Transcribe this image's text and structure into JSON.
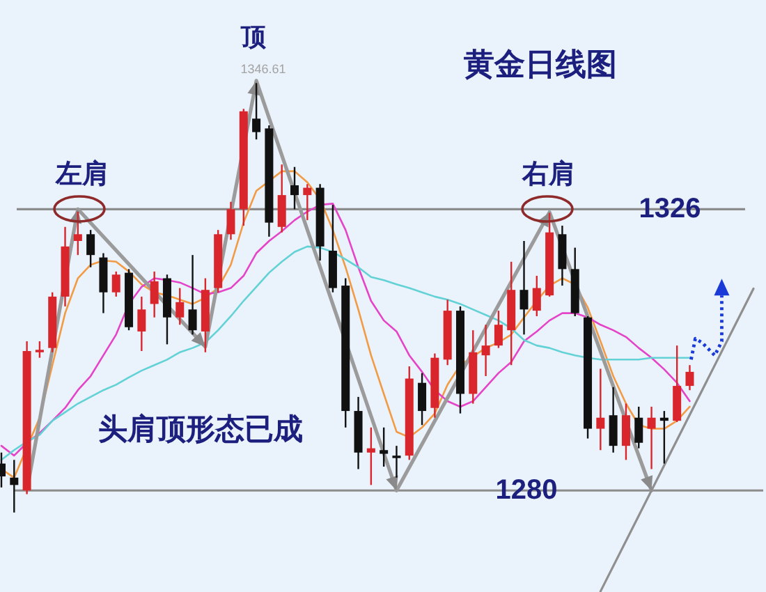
{
  "chart_data": {
    "type": "candlestick",
    "title": "黄金日线图",
    "categories": [
      null,
      null,
      null,
      null,
      null,
      null,
      null,
      null,
      null,
      null,
      null,
      null,
      null,
      null,
      null,
      null,
      null,
      null,
      null,
      null,
      null,
      null,
      null,
      null,
      null,
      null,
      null,
      null,
      null,
      null,
      null,
      null,
      null,
      null,
      null,
      null,
      null,
      null,
      null,
      null,
      null,
      null,
      null,
      null,
      null,
      null,
      null,
      null,
      null,
      null,
      null,
      null,
      null,
      null,
      null,
      null,
      null,
      null,
      null,
      null
    ],
    "ylim": [
      1263.4,
      1360.2
    ],
    "ohlc": [
      [
        1284.4,
        1286.2,
        1280.5,
        1282.3
      ],
      [
        1282.1,
        1285.0,
        1276.4,
        1280.9
      ],
      [
        1280.0,
        1304.4,
        1279.4,
        1302.8
      ],
      [
        1302.6,
        1304.4,
        1301.7,
        1303.0
      ],
      [
        1303.3,
        1312.4,
        1302.6,
        1311.7
      ],
      [
        1311.7,
        1323.1,
        1310.1,
        1319.9
      ],
      [
        1320.8,
        1325.6,
        1318.5,
        1321.9
      ],
      [
        1321.9,
        1322.6,
        1316.5,
        1318.5
      ],
      [
        1318.1,
        1318.8,
        1309.0,
        1312.4
      ],
      [
        1312.4,
        1315.8,
        1311.7,
        1315.3
      ],
      [
        1315.6,
        1316.2,
        1306.2,
        1306.7
      ],
      [
        1306.0,
        1311.7,
        1302.8,
        1309.6
      ],
      [
        1310.5,
        1315.8,
        1308.3,
        1314.2
      ],
      [
        1314.7,
        1315.3,
        1303.9,
        1308.3
      ],
      [
        1308.3,
        1313.1,
        1307.1,
        1310.8
      ],
      [
        1309.6,
        1318.5,
        1305.5,
        1306.2
      ],
      [
        1306.0,
        1314.7,
        1302.6,
        1312.8
      ],
      [
        1313.1,
        1322.6,
        1312.4,
        1321.9
      ],
      [
        1321.9,
        1327.2,
        1321.0,
        1326.0
      ],
      [
        1326.0,
        1342.4,
        1323.3,
        1342.0
      ],
      [
        1340.8,
        1346.61,
        1337.4,
        1338.6
      ],
      [
        1339.2,
        1339.7,
        1321.5,
        1323.8
      ],
      [
        1323.1,
        1333.3,
        1322.2,
        1328.3
      ],
      [
        1329.9,
        1332.9,
        1326.0,
        1328.3
      ],
      [
        1328.3,
        1330.1,
        1324.2,
        1329.5
      ],
      [
        1329.5,
        1330.1,
        1317.6,
        1319.9
      ],
      [
        1319.2,
        1326.7,
        1312.4,
        1313.1
      ],
      [
        1313.5,
        1314.7,
        1290.3,
        1293.0
      ],
      [
        1293.0,
        1295.3,
        1283.5,
        1286.2
      ],
      [
        1286.2,
        1290.3,
        1280.9,
        1286.9
      ],
      [
        1286.6,
        1290.3,
        1283.9,
        1286.0
      ],
      [
        1285.7,
        1287.3,
        1282.1,
        1285.3
      ],
      [
        1285.7,
        1300.3,
        1285.0,
        1298.3
      ],
      [
        1297.6,
        1299.2,
        1290.7,
        1293.0
      ],
      [
        1293.5,
        1302.4,
        1291.9,
        1301.7
      ],
      [
        1301.4,
        1311.2,
        1300.5,
        1309.4
      ],
      [
        1309.4,
        1310.1,
        1292.6,
        1295.8
      ],
      [
        1295.8,
        1306.2,
        1294.2,
        1302.6
      ],
      [
        1302.1,
        1307.1,
        1298.7,
        1303.7
      ],
      [
        1303.7,
        1309.4,
        1303.3,
        1307.1
      ],
      [
        1306.2,
        1317.4,
        1300.5,
        1312.8
      ],
      [
        1312.8,
        1320.8,
        1305.5,
        1309.6
      ],
      [
        1309.4,
        1315.1,
        1308.5,
        1313.1
      ],
      [
        1311.9,
        1325.4,
        1311.7,
        1322.2
      ],
      [
        1321.9,
        1323.3,
        1313.5,
        1316.2
      ],
      [
        1316.2,
        1319.7,
        1308.5,
        1309.0
      ],
      [
        1308.3,
        1308.5,
        1288.5,
        1290.1
      ],
      [
        1290.1,
        1299.9,
        1286.6,
        1291.9
      ],
      [
        1292.3,
        1296.9,
        1286.2,
        1287.3
      ],
      [
        1287.3,
        1294.2,
        1285.0,
        1292.3
      ],
      [
        1291.9,
        1293.7,
        1286.9,
        1287.8
      ],
      [
        1290.1,
        1293.7,
        1283.5,
        1291.9
      ],
      [
        1291.9,
        1293.0,
        1284.4,
        1291.4
      ],
      [
        1291.4,
        1303.7,
        1291.2,
        1297.1
      ],
      [
        1297.1,
        1300.5,
        1296.4,
        1299.4
      ],
      null,
      null,
      null,
      null,
      null
    ],
    "colors": [
      "#111111",
      "#111111",
      "#d9262c",
      "#d9262c",
      "#d9262c",
      "#d9262c",
      "#d9262c",
      "#111111",
      "#111111",
      "#d9262c",
      "#111111",
      "#d9262c",
      "#d9262c",
      "#111111",
      "#d9262c",
      "#111111",
      "#d9262c",
      "#d9262c",
      "#d9262c",
      "#d9262c",
      "#111111",
      "#111111",
      "#d9262c",
      "#111111",
      "#d9262c",
      "#111111",
      "#111111",
      "#111111",
      "#111111",
      "#d9262c",
      "#111111",
      "#111111",
      "#d9262c",
      "#111111",
      "#d9262c",
      "#d9262c",
      "#111111",
      "#d9262c",
      "#d9262c",
      "#d9262c",
      "#d9262c",
      "#111111",
      "#d9262c",
      "#d9262c",
      "#111111",
      "#111111",
      "#111111",
      "#d9262c",
      "#111111",
      "#d9262c",
      "#111111",
      "#d9262c",
      "#111111",
      "#d9262c",
      "#d9262c",
      null,
      null,
      null,
      null,
      null
    ],
    "series": [
      {
        "type": "line",
        "color": "#f29b45",
        "values": [
          1283.5,
          1282.1,
          null,
          1291.9,
          1300.5,
          1309.0,
          1314.7,
          1316.9,
          1317.6,
          1317.4,
          1315.8,
          1313.7,
          1312.4,
          1311.9,
          1311.2,
          1310.5,
          1311.5,
          1313.1,
          1316.9,
          1323.8,
          1329.0,
          1330.6,
          1332.2,
          1332.2,
          1330.4,
          1327.6,
          1322.6,
          1316.5,
          1309.6,
          1302.1,
          1295.8,
          1289.6,
          1288.7,
          1290.3,
          1292.6,
          1297.3,
          1300.5,
          1301.9,
          1303.3,
          1304.2,
          1305.5,
          1308.3,
          1311.0,
          1313.5,
          1314.7,
          1313.7,
          1309.9,
          1304.4,
          1298.7,
          1294.2,
          1290.7,
          1290.1,
          1290.1,
          1291.4,
          1293.7,
          null,
          null,
          null,
          null,
          null
        ]
      },
      {
        "type": "line",
        "color": "#e444c8",
        "values": [
          1287.3,
          1285.7,
          1287.8,
          1289.4,
          1291.4,
          1293.5,
          1296.4,
          1298.7,
          1302.1,
          1305.5,
          1310.5,
          1313.3,
          1314.7,
          1314.4,
          1314.0,
          1313.1,
          1312.1,
          1312.4,
          1313.1,
          1315.1,
          1318.8,
          1320.8,
          1322.4,
          1324.2,
          1325.6,
          1326.7,
          1326.9,
          1322.6,
          1316.5,
          1311.0,
          1307.8,
          1306.0,
          1302.1,
          1299.4,
          1296.4,
          1294.6,
          1293.7,
          1294.6,
          1296.9,
          1299.2,
          1301.0,
          1304.4,
          1306.0,
          1307.8,
          1309.0,
          1309.0,
          1308.3,
          1307.1,
          1306.2,
          1305.1,
          1303.3,
          1301.7,
          1299.8,
          1297.6,
          1294.6,
          null,
          null,
          null,
          null,
          null
        ]
      },
      {
        "type": "line",
        "color": "#62d2d6",
        "values": [
          1285.0,
          1286.6,
          1288.0,
          1289.1,
          1291.4,
          1292.8,
          1294.2,
          1295.3,
          1296.4,
          1297.3,
          1298.5,
          1299.6,
          1300.5,
          1301.4,
          1302.6,
          1303.3,
          1304.2,
          1306.2,
          1308.5,
          1311.0,
          1313.3,
          1315.6,
          1317.4,
          1319.0,
          1319.9,
          1319.7,
          1319.0,
          1317.8,
          1316.5,
          1314.9,
          1314.4,
          1313.7,
          1313.1,
          1312.4,
          1311.7,
          1311.2,
          1310.5,
          1309.6,
          1308.7,
          1307.8,
          1306.5,
          1304.6,
          1303.7,
          1303.3,
          1302.6,
          1302.1,
          1301.7,
          1301.4,
          1301.4,
          1301.4,
          1301.4,
          1301.7,
          1301.7,
          1301.7,
          1301.7,
          null,
          null,
          null,
          null,
          null
        ]
      },
      {
        "type": "line",
        "color": "#9b9b9b",
        "values": [
          null,
          null,
          1280,
          null,
          null,
          null,
          1326,
          null,
          null,
          null,
          null,
          null,
          null,
          null,
          null,
          null,
          1303.5,
          null,
          null,
          null,
          1347,
          null,
          null,
          null,
          null,
          null,
          null,
          null,
          null,
          null,
          null,
          1280,
          null,
          null,
          null,
          null,
          null,
          null,
          null,
          null,
          null,
          null,
          null,
          1325.5,
          null,
          null,
          null,
          null,
          null,
          null,
          null,
          1280,
          null,
          null,
          null,
          null,
          null,
          null,
          null,
          null
        ]
      },
      {
        "type": "line",
        "color": "#8f8f8f",
        "values": [
          null,
          null,
          null,
          null,
          null,
          null,
          null,
          null,
          null,
          null,
          null,
          null,
          null,
          null,
          null,
          null,
          null,
          null,
          null,
          null,
          null,
          null,
          null,
          null,
          null,
          null,
          null,
          null,
          null,
          null,
          null,
          null,
          null,
          null,
          null,
          null,
          null,
          null,
          null,
          null,
          null,
          null,
          null,
          null,
          null,
          null,
          null,
          1263.5,
          null,
          null,
          null,
          null,
          null,
          null,
          null,
          null,
          null,
          null,
          null,
          1313
        ]
      }
    ],
    "ref_lines": [
      {
        "axis": "y",
        "value": 1326,
        "label": "1326",
        "color": "#8c8c8c"
      },
      {
        "axis": "y",
        "value": 1280,
        "label": "1280",
        "color": "#8c8c8c"
      }
    ],
    "annotations": [
      "左肩",
      "顶",
      "右肩",
      "头肩顶形态已成",
      {
        "text": "1346.61",
        "y": 1346.61
      }
    ]
  }
}
